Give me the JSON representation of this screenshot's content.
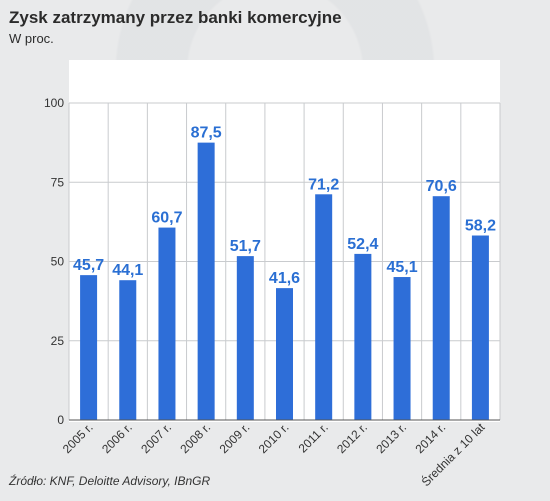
{
  "header": {
    "title": "Zysk zatrzymany przez banki komercyjne",
    "subtitle": "W proc."
  },
  "footer": {
    "source": "Źródło: KNF, Deloitte Advisory, IBnGR"
  },
  "colors": {
    "bar": "#2e6ed8",
    "label": "#2a6fd3",
    "grid": "#c9cbce",
    "plot_bg": "#ffffff"
  },
  "chart_data": {
    "type": "bar",
    "title": "Zysk zatrzymany przez banki komercyjne",
    "subtitle": "W proc.",
    "categories": [
      "2005 r.",
      "2006 r.",
      "2007 r.",
      "2008 r.",
      "2009 r.",
      "2010 r.",
      "2011 r.",
      "2012 r.",
      "2013 r.",
      "2014 r.",
      "Średnia z 10 lat"
    ],
    "values": [
      45.7,
      44.1,
      60.7,
      87.5,
      51.7,
      41.6,
      71.2,
      52.4,
      45.1,
      70.6,
      58.2
    ],
    "value_labels": [
      "45,7",
      "44,1",
      "60,7",
      "87,5",
      "51,7",
      "41,6",
      "71,2",
      "52,4",
      "45,1",
      "70,6",
      "58,2"
    ],
    "ylim": [
      0,
      100
    ],
    "yticks": [
      0,
      25,
      50,
      75,
      100
    ],
    "grid": true,
    "xlabel": "",
    "ylabel": ""
  }
}
